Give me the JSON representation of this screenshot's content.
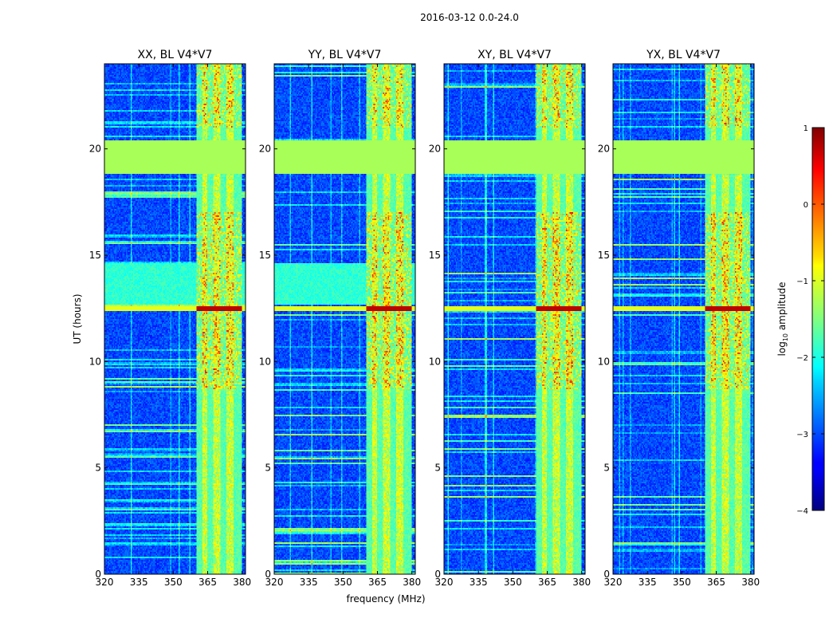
{
  "figure": {
    "suptitle": "2016-03-12 0.0-24.0"
  },
  "chart_data": {
    "type": "heatmap",
    "xlabel": "frequency (MHz)",
    "ylabel": "UT (hours)",
    "xlim": [
      320,
      381.5
    ],
    "ylim": [
      0,
      24
    ],
    "xticks": [
      320,
      335,
      350,
      365,
      380
    ],
    "yticks": [
      0,
      5,
      10,
      15,
      20
    ],
    "panels": [
      {
        "title": "XX, BL V4*V7",
        "pol": "XX"
      },
      {
        "title": "YY, BL V4*V7",
        "pol": "YY"
      },
      {
        "title": "XY, BL V4*V7",
        "pol": "XY"
      },
      {
        "title": "YX, BL V4*V7",
        "pol": "YX"
      }
    ],
    "flagged_band_hours": [
      18.8,
      20.4
    ],
    "flagged_band_value": -1.3,
    "strong_rfi_band_mhz": [
      360,
      380
    ],
    "strong_rfi_channels_mhz": [
      361.5,
      366,
      372,
      377.5,
      380
    ],
    "colorbar": {
      "label": "log",
      "label_sub": "10",
      "label_rest": " amplitude",
      "range": [
        -4,
        1
      ],
      "ticks": [
        1,
        0,
        -1,
        -2,
        -3,
        -4
      ],
      "tick_labels": [
        "1",
        "0",
        "−1",
        "−2",
        "−3",
        "−4"
      ],
      "colormap": "jet"
    }
  }
}
